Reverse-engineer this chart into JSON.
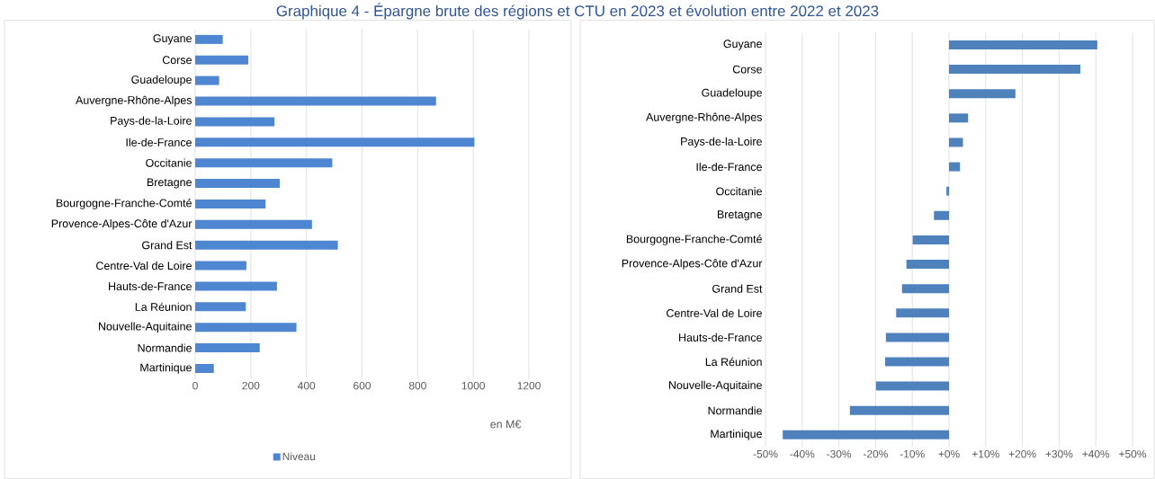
{
  "chart_data": [
    {
      "type": "bar",
      "orientation": "horizontal",
      "title": "Graphique 4 - Épargne brute des régions et CTU en 2023 et évolution entre 2022 et 2023",
      "categories": [
        "Guyane",
        "Corse",
        "Guadeloupe",
        "Auvergne-Rhône-Alpes",
        "Pays-de-la-Loire",
        "Ile-de-France",
        "Occitanie",
        "Bretagne",
        "Bourgogne-Franche-Comté",
        "Provence-Alpes-Côte d'Azur",
        "Grand Est",
        "Centre-Val de Loire",
        "Hauts-de-France",
        "La Réunion",
        "Nouvelle-Aquitaine",
        "Normandie",
        "Martinique"
      ],
      "series": [
        {
          "name": "Niveau",
          "color": "#4f86d2",
          "values": [
            99,
            191,
            86,
            866,
            285,
            1004,
            493,
            304,
            253,
            420,
            513,
            184,
            294,
            182,
            364,
            232,
            67
          ]
        }
      ],
      "xlabel": "en M€",
      "xlim": [
        0,
        1200
      ],
      "xticks": [
        0,
        200,
        400,
        600,
        800,
        1000,
        1200
      ],
      "grid": "x",
      "legend": "bottom"
    },
    {
      "type": "bar",
      "orientation": "horizontal",
      "categories": [
        "Guyane",
        "Corse",
        "Guadeloupe",
        "Auvergne-Rhône-Alpes",
        "Pays-de-la-Loire",
        "Ile-de-France",
        "Occitanie",
        "Bretagne",
        "Bourgogne-Franche-Comté",
        "Provence-Alpes-Côte d'Azur",
        "Grand Est",
        "Centre-Val de Loire",
        "Hauts-de-France",
        "La Réunion",
        "Nouvelle-Aquitaine",
        "Normandie",
        "Martinique"
      ],
      "values": [
        40.4,
        35.8,
        18.1,
        5.2,
        3.8,
        3.0,
        -0.7,
        -4.1,
        -9.9,
        -11.6,
        -12.8,
        -14.4,
        -17.2,
        -17.4,
        -19.9,
        -27.0,
        -45.3
      ],
      "color": "#4f81bd",
      "xlim": [
        -50,
        50
      ],
      "xticks": [
        {
          "value": -50,
          "label": "-50%"
        },
        {
          "value": -40,
          "label": "-40%"
        },
        {
          "value": -30,
          "label": "-30%"
        },
        {
          "value": -20,
          "label": "-20%"
        },
        {
          "value": -10,
          "label": "-10%"
        },
        {
          "value": 0,
          "label": "+0%"
        },
        {
          "value": 10,
          "label": "+10%"
        },
        {
          "value": 20,
          "label": "+20%"
        },
        {
          "value": 30,
          "label": "+30%"
        },
        {
          "value": 40,
          "label": "+40%"
        },
        {
          "value": 50,
          "label": "+50%"
        }
      ],
      "grid": "x"
    }
  ]
}
